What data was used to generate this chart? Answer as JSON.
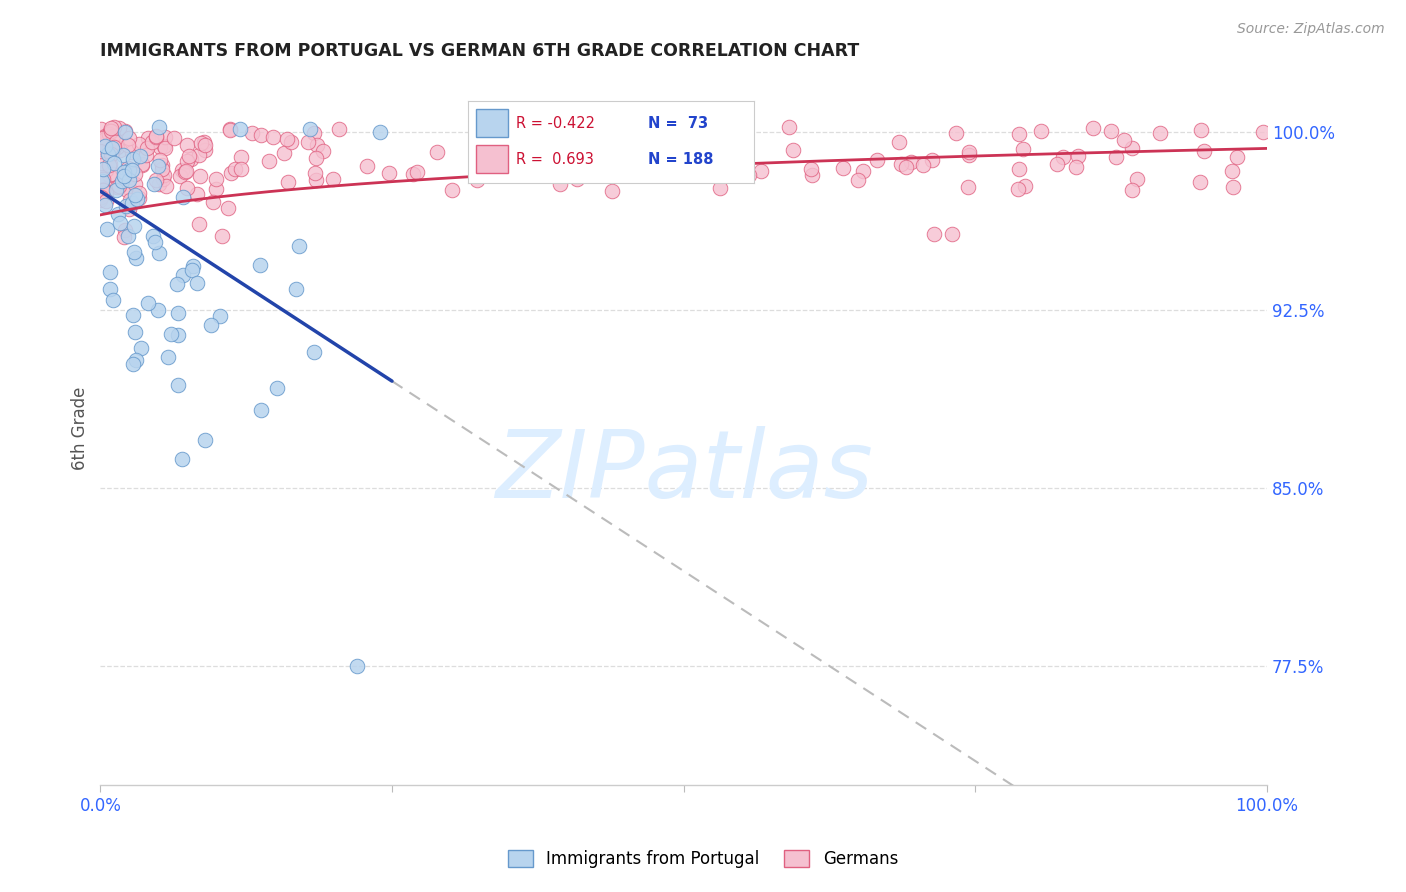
{
  "title": "IMMIGRANTS FROM PORTUGAL VS GERMAN 6TH GRADE CORRELATION CHART",
  "source": "Source: ZipAtlas.com",
  "ylabel": "6th Grade",
  "ytick_labels": [
    "100.0%",
    "92.5%",
    "85.0%",
    "77.5%"
  ],
  "ytick_values": [
    1.0,
    0.925,
    0.85,
    0.775
  ],
  "legend_label1": "Immigrants from Portugal",
  "legend_label2": "Germans",
  "R_blue": -0.422,
  "N_blue": 73,
  "R_pink": 0.693,
  "N_pink": 188,
  "blue_color": "#b8d4ee",
  "blue_edge_color": "#6699cc",
  "pink_color": "#f5c0d0",
  "pink_edge_color": "#e06080",
  "blue_line_color": "#2244aa",
  "pink_line_color": "#cc3355",
  "gray_dash_color": "#bbbbbb",
  "watermark_color": "#ddeeff",
  "background_color": "#ffffff",
  "grid_color": "#dddddd",
  "title_color": "#222222",
  "axis_label_color": "#555555",
  "tick_color": "#3366ff",
  "xlim": [
    0.0,
    1.0
  ],
  "ylim": [
    0.725,
    1.025
  ],
  "figsize": [
    14.06,
    8.92
  ],
  "dpi": 100
}
